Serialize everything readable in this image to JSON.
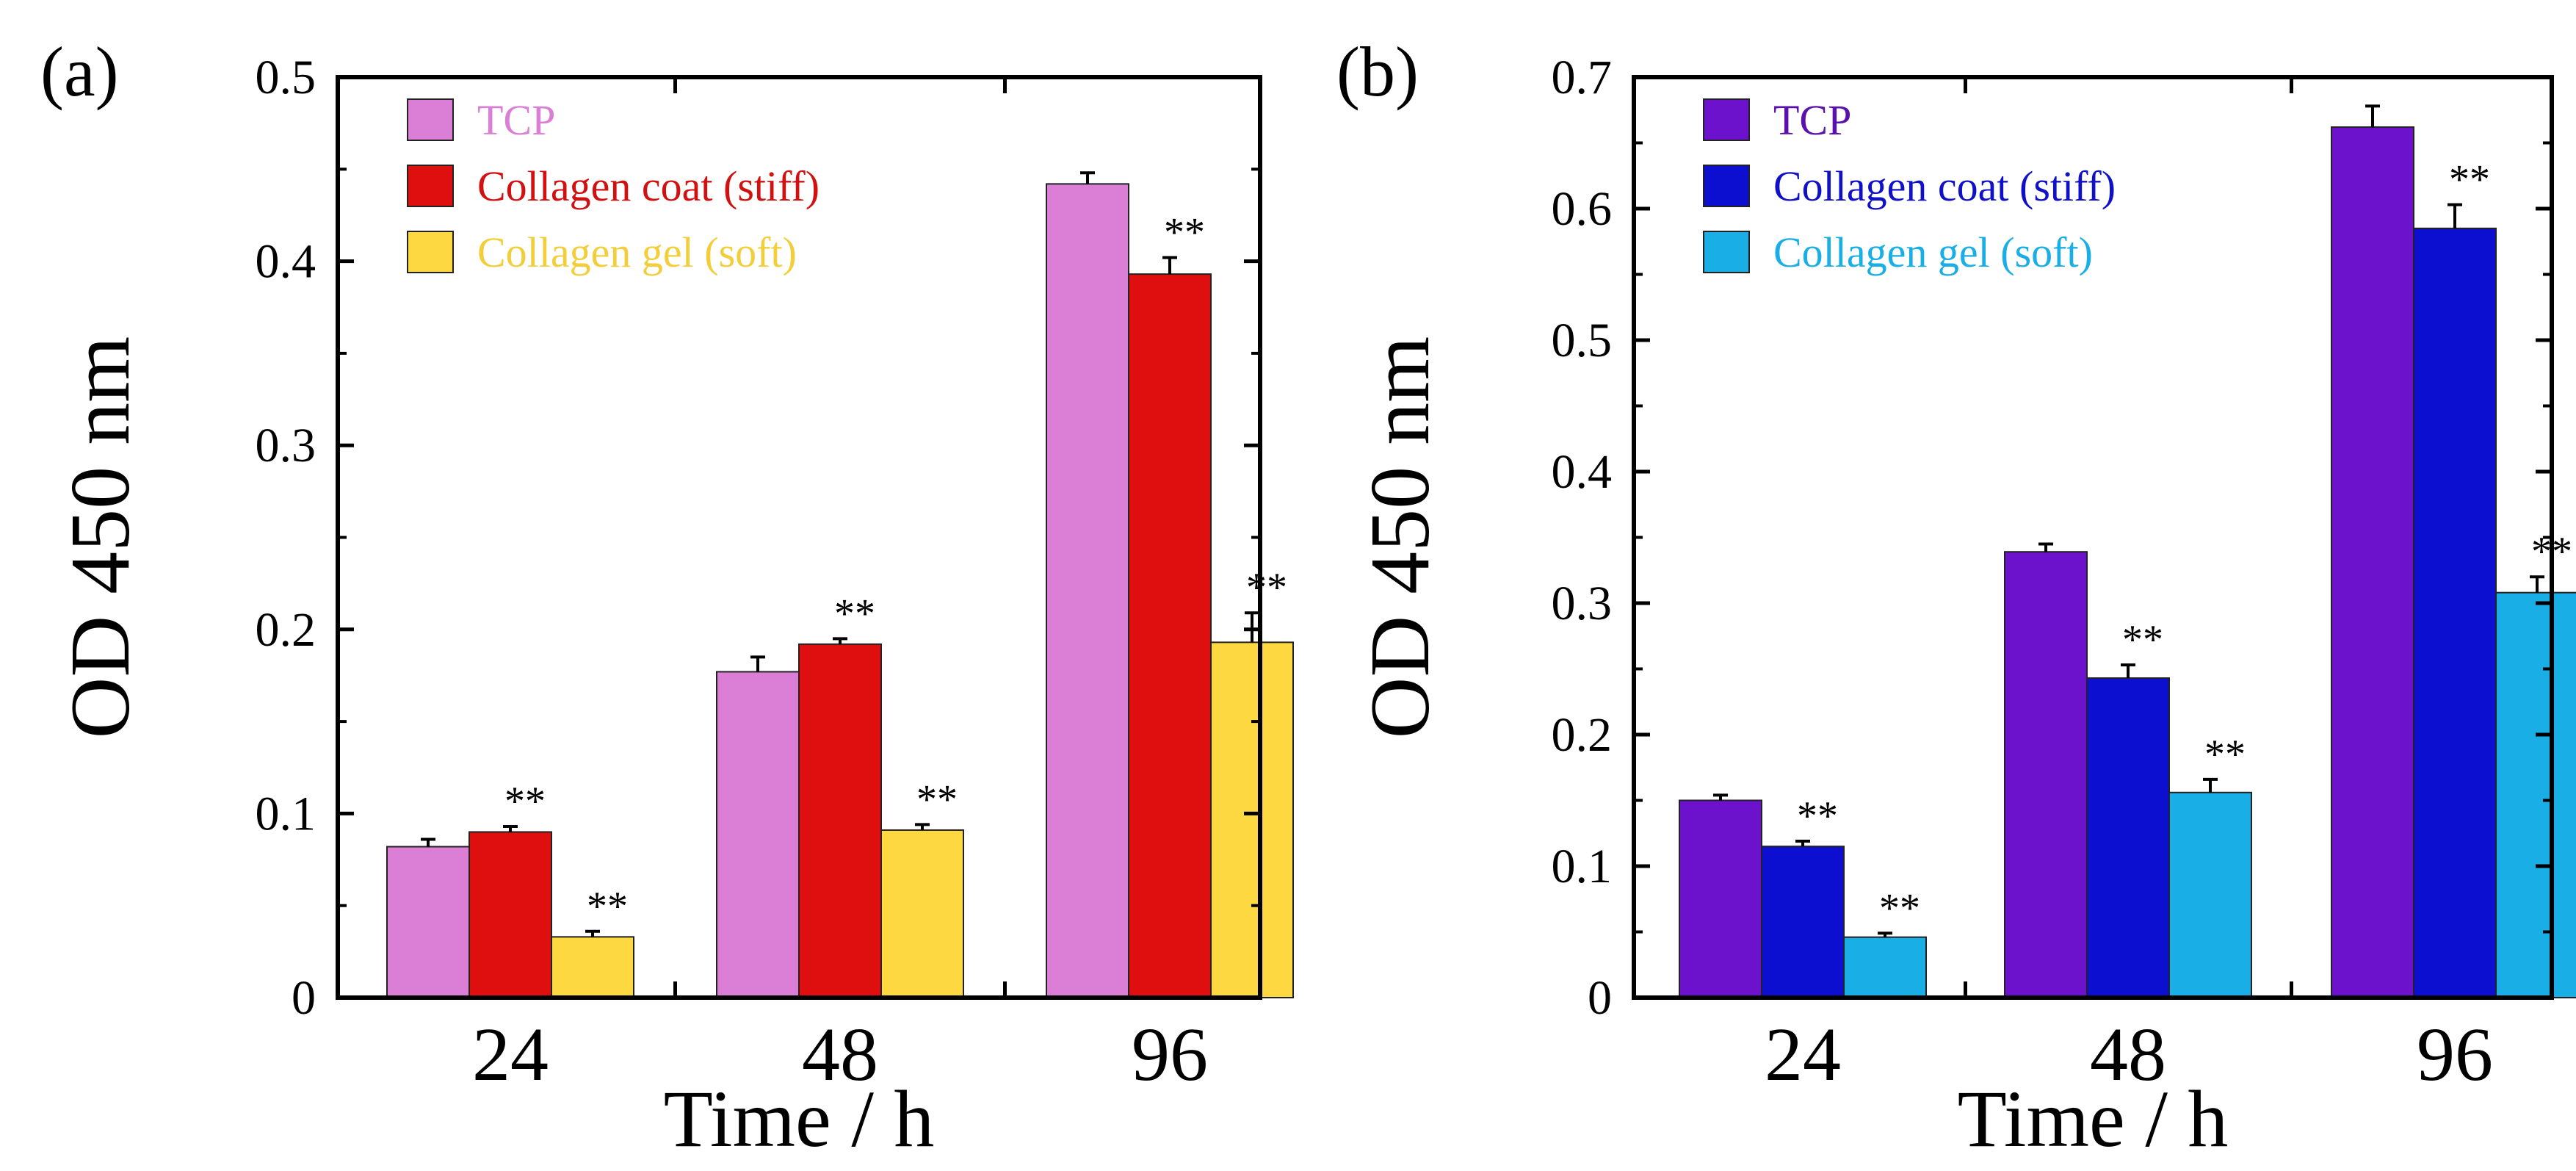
{
  "chart_data": [
    {
      "panel_label": "(a)",
      "type": "bar",
      "categories": [
        "24",
        "48",
        "96"
      ],
      "xlabel": "Time / h",
      "ylabel": "OD 450 nm",
      "ylim": [
        0,
        0.5
      ],
      "yticks": [
        "0",
        "0.1",
        "0.2",
        "0.3",
        "0.4",
        "0.5"
      ],
      "ytick_values": [
        0,
        0.1,
        0.2,
        0.3,
        0.4,
        0.5
      ],
      "grid": false,
      "legend_position": "top-left",
      "significance_marker": "**",
      "series": [
        {
          "name": "TCP",
          "color": "#db7fd6",
          "legend_text_color": "#db7fd6",
          "values": [
            0.082,
            0.177,
            0.442
          ],
          "errors": [
            0.004,
            0.008,
            0.006
          ],
          "significant": [
            false,
            false,
            false
          ]
        },
        {
          "name": "Collagen coat (stiff)",
          "color": "#e00f0f",
          "legend_text_color": "#d21010",
          "values": [
            0.09,
            0.192,
            0.393
          ],
          "errors": [
            0.003,
            0.003,
            0.009
          ],
          "significant": [
            true,
            true,
            true
          ]
        },
        {
          "name": "Collagen gel (soft)",
          "color": "#fdd840",
          "legend_text_color": "#f2cf3a",
          "values": [
            0.033,
            0.091,
            0.193
          ],
          "errors": [
            0.003,
            0.003,
            0.016
          ],
          "significant": [
            true,
            true,
            true
          ]
        }
      ]
    },
    {
      "panel_label": "(b)",
      "type": "bar",
      "categories": [
        "24",
        "48",
        "96"
      ],
      "xlabel": "Time / h",
      "ylabel": "OD 450 nm",
      "ylim": [
        0,
        0.7
      ],
      "yticks": [
        "0",
        "0.1",
        "0.2",
        "0.3",
        "0.4",
        "0.5",
        "0.6",
        "0.7"
      ],
      "ytick_values": [
        0,
        0.1,
        0.2,
        0.3,
        0.4,
        0.5,
        0.6,
        0.7
      ],
      "grid": false,
      "legend_position": "top-left",
      "significance_marker": "**",
      "series": [
        {
          "name": "TCP",
          "color": "#6c12cc",
          "legend_text_color": "#5a10b0",
          "values": [
            0.15,
            0.339,
            0.662
          ],
          "errors": [
            0.004,
            0.006,
            0.016
          ],
          "significant": [
            false,
            false,
            false
          ]
        },
        {
          "name": "Collagen coat (stiff)",
          "color": "#0d0fd0",
          "legend_text_color": "#1010c8",
          "values": [
            0.115,
            0.243,
            0.585
          ],
          "errors": [
            0.004,
            0.01,
            0.018
          ],
          "significant": [
            true,
            true,
            true
          ]
        },
        {
          "name": "Collagen gel (soft)",
          "color": "#1aaee6",
          "legend_text_color": "#1aaee6",
          "values": [
            0.046,
            0.156,
            0.308
          ],
          "errors": [
            0.003,
            0.01,
            0.012
          ],
          "significant": [
            true,
            true,
            true
          ]
        }
      ]
    }
  ]
}
